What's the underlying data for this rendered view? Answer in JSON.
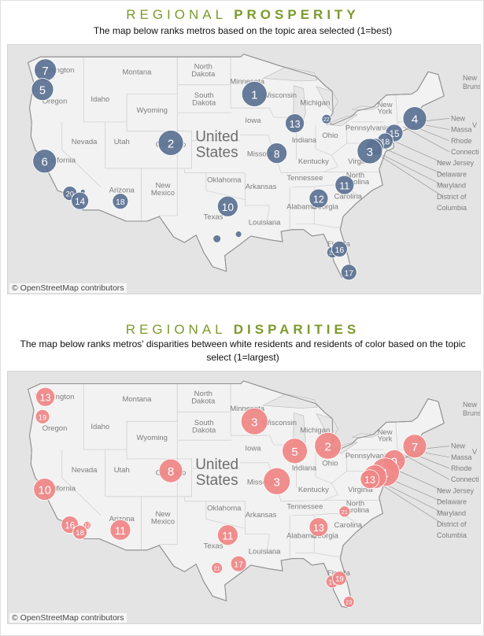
{
  "prosperity": {
    "title_light": "REGIONAL",
    "title_bold": "PROSPERITY",
    "subtitle": "The map below ranks metros based on the topic area selected (1=best)",
    "attribution": "© OpenStreetMap contributors",
    "bubble_color": "#5b7193",
    "markers": [
      {
        "rank": "7",
        "lon": -122.3,
        "lat": 47.6,
        "r": 14
      },
      {
        "rank": "5",
        "lon": -122.7,
        "lat": 45.5,
        "r": 14
      },
      {
        "rank": "1",
        "lon": -93.3,
        "lat": 45.0,
        "r": 16
      },
      {
        "rank": "13",
        "lon": -87.7,
        "lat": 41.85,
        "r": 12
      },
      {
        "rank": "2",
        "lon": -104.9,
        "lat": 39.74,
        "r": 16
      },
      {
        "rank": "8",
        "lon": -90.2,
        "lat": 38.63,
        "r": 13
      },
      {
        "rank": "6",
        "lon": -122.4,
        "lat": 37.77,
        "r": 15
      },
      {
        "rank": "20",
        "lon": -118.9,
        "lat": 34.3,
        "r": 9
      },
      {
        "rank": "",
        "lon": -117.1,
        "lat": 34.5,
        "r": 3
      },
      {
        "rank": "14",
        "lon": -117.5,
        "lat": 33.5,
        "r": 11
      },
      {
        "rank": "18",
        "lon": -111.9,
        "lat": 33.45,
        "r": 10
      },
      {
        "rank": "10",
        "lon": -97.0,
        "lat": 32.9,
        "r": 13
      },
      {
        "rank": "",
        "lon": -95.5,
        "lat": 29.9,
        "r": 4
      },
      {
        "rank": "",
        "lon": -98.5,
        "lat": 29.4,
        "r": 5
      },
      {
        "rank": "12",
        "lon": -84.39,
        "lat": 33.75,
        "r": 12
      },
      {
        "rank": "11",
        "lon": -80.8,
        "lat": 35.2,
        "r": 12
      },
      {
        "rank": "22",
        "lon": -83.3,
        "lat": 42.3,
        "r": 6
      },
      {
        "rank": "4",
        "lon": -71.06,
        "lat": 42.36,
        "r": 15
      },
      {
        "rank": "15",
        "lon": -73.9,
        "lat": 40.8,
        "r": 11
      },
      {
        "rank": "18",
        "lon": -75.16,
        "lat": 39.95,
        "r": 10
      },
      {
        "rank": "9",
        "lon": -76.6,
        "lat": 39.3,
        "r": 11
      },
      {
        "rank": "3",
        "lon": -77.3,
        "lat": 38.85,
        "r": 16
      },
      {
        "rank": "21",
        "lon": -82.5,
        "lat": 27.95,
        "r": 7
      },
      {
        "rank": "16",
        "lon": -81.5,
        "lat": 28.3,
        "r": 10
      },
      {
        "rank": "17",
        "lon": -80.2,
        "lat": 25.8,
        "r": 10
      }
    ]
  },
  "disparities": {
    "title_light": "REGIONAL",
    "title_bold": "DISPARITIES",
    "subtitle_line1": "The map below ranks metros' disparities between white residents and residents of color based on the topic",
    "subtitle_line2": "select (1=largest)",
    "attribution": "© OpenStreetMap contributors",
    "bubble_color": "#f08585",
    "markers": [
      {
        "rank": "13",
        "lon": -122.3,
        "lat": 47.6,
        "r": 12
      },
      {
        "rank": "19",
        "lon": -122.7,
        "lat": 45.5,
        "r": 9
      },
      {
        "rank": "3",
        "lon": -93.3,
        "lat": 45.0,
        "r": 17
      },
      {
        "rank": "2",
        "lon": -83.1,
        "lat": 42.4,
        "r": 17
      },
      {
        "rank": "5",
        "lon": -87.7,
        "lat": 41.85,
        "r": 16
      },
      {
        "rank": "8",
        "lon": -104.9,
        "lat": 39.74,
        "r": 15
      },
      {
        "rank": "3",
        "lon": -90.2,
        "lat": 38.63,
        "r": 17
      },
      {
        "rank": "10",
        "lon": -122.4,
        "lat": 37.77,
        "r": 14
      },
      {
        "rank": "12",
        "lon": -116.5,
        "lat": 33.95,
        "r": 5
      },
      {
        "rank": "16",
        "lon": -118.9,
        "lat": 34.0,
        "r": 11
      },
      {
        "rank": "18",
        "lon": -117.5,
        "lat": 33.2,
        "r": 9
      },
      {
        "rank": "11",
        "lon": -111.9,
        "lat": 33.45,
        "r": 13
      },
      {
        "rank": "11",
        "lon": -97.0,
        "lat": 32.9,
        "r": 13
      },
      {
        "rank": "21",
        "lon": -98.5,
        "lat": 29.4,
        "r": 7
      },
      {
        "rank": "17",
        "lon": -95.5,
        "lat": 29.85,
        "r": 10
      },
      {
        "rank": "13",
        "lon": -84.39,
        "lat": 33.75,
        "r": 12
      },
      {
        "rank": "21",
        "lon": -80.8,
        "lat": 35.4,
        "r": 7
      },
      {
        "rank": "7",
        "lon": -71.06,
        "lat": 42.36,
        "r": 15
      },
      {
        "rank": "9",
        "lon": -73.9,
        "lat": 40.8,
        "r": 14
      },
      {
        "rank": "1",
        "lon": -75.16,
        "lat": 39.6,
        "r": 18
      },
      {
        "rank": "6",
        "lon": -76.6,
        "lat": 39.1,
        "r": 15
      },
      {
        "rank": "13",
        "lon": -77.3,
        "lat": 38.85,
        "r": 12
      },
      {
        "rank": "15",
        "lon": -82.5,
        "lat": 27.95,
        "r": 8
      },
      {
        "rank": "19",
        "lon": -81.5,
        "lat": 28.3,
        "r": 9
      },
      {
        "rank": "23",
        "lon": -80.2,
        "lat": 25.8,
        "r": 7
      }
    ]
  },
  "map_labels": {
    "country_line1": "United",
    "country_line2": "States",
    "states": [
      {
        "name": "Washington",
        "lon": -121.0,
        "lat": 47.35
      },
      {
        "name": "Oregon",
        "lon": -121.0,
        "lat": 44.0
      },
      {
        "name": "Idaho",
        "lon": -114.7,
        "lat": 44.2
      },
      {
        "name": "Montana",
        "lon": -109.6,
        "lat": 47.1
      },
      {
        "name": "Wyoming",
        "lon": -107.5,
        "lat": 43.0
      },
      {
        "name": "Nevada",
        "lon": -116.9,
        "lat": 39.6
      },
      {
        "name": "Utah",
        "lon": -111.7,
        "lat": 39.6
      },
      {
        "name": "California",
        "lon": -120.3,
        "lat": 37.6
      },
      {
        "name": "Arizona",
        "lon": -111.7,
        "lat": 34.4
      },
      {
        "name": "Colorado",
        "lon": -104.9,
        "lat": 39.3
      },
      {
        "name": "New",
        "lon": -106.0,
        "lat": 34.9
      },
      {
        "name": "Mexico",
        "lon": -106.0,
        "lat": 34.1
      },
      {
        "name": "North",
        "lon": -100.4,
        "lat": 47.7
      },
      {
        "name": "Dakota",
        "lon": -100.4,
        "lat": 46.9
      },
      {
        "name": "South",
        "lon": -100.3,
        "lat": 44.6
      },
      {
        "name": "Dakota",
        "lon": -100.3,
        "lat": 43.8
      },
      {
        "name": "Minnesota",
        "lon": -94.3,
        "lat": 46.1
      },
      {
        "name": "Wisconsin",
        "lon": -89.8,
        "lat": 44.6
      },
      {
        "name": "Iowa",
        "lon": -93.5,
        "lat": 41.9
      },
      {
        "name": "Missouri",
        "lon": -92.4,
        "lat": 38.3
      },
      {
        "name": "Oklahoma",
        "lon": -97.5,
        "lat": 35.5
      },
      {
        "name": "Arkansas",
        "lon": -92.4,
        "lat": 34.8
      },
      {
        "name": "Texas",
        "lon": -99.0,
        "lat": 31.5
      },
      {
        "name": "Louisiana",
        "lon": -91.9,
        "lat": 30.9
      },
      {
        "name": "Michigan",
        "lon": -84.9,
        "lat": 43.8
      },
      {
        "name": "Indiana",
        "lon": -86.4,
        "lat": 39.8
      },
      {
        "name": "Ohio",
        "lon": -82.8,
        "lat": 40.3
      },
      {
        "name": "Kentucky",
        "lon": -85.1,
        "lat": 37.5
      },
      {
        "name": "Tennessee",
        "lon": -86.3,
        "lat": 35.7
      },
      {
        "name": "Alabama",
        "lon": -86.8,
        "lat": 32.6
      },
      {
        "name": "Georgia",
        "lon": -83.5,
        "lat": 32.6
      },
      {
        "name": "Florida",
        "lon": -81.6,
        "lat": 28.6
      },
      {
        "name": "Carolina",
        "lon": -80.3,
        "lat": 33.7
      },
      {
        "name": "North",
        "lon": -79.3,
        "lat": 36.0
      },
      {
        "name": "Carolina",
        "lon": -79.3,
        "lat": 35.3
      },
      {
        "name": "Virginia",
        "lon": -78.6,
        "lat": 37.5
      },
      {
        "name": "Pennsylvania",
        "lon": -77.6,
        "lat": 41.1
      },
      {
        "name": "New",
        "lon": -75.2,
        "lat": 43.6
      },
      {
        "name": "York",
        "lon": -75.2,
        "lat": 42.9
      }
    ],
    "callouts": [
      {
        "name": "New",
        "line": 0
      },
      {
        "name": "Massa",
        "line": 1
      },
      {
        "name": "Rhode",
        "line": 2
      },
      {
        "name": "Connecti",
        "line": 3
      },
      {
        "name": "New Jersey",
        "line": 4
      },
      {
        "name": "Delaware",
        "line": 5
      },
      {
        "name": "Maryland",
        "line": 6
      },
      {
        "name": "District of",
        "line": 7
      },
      {
        "name": "Columbia",
        "line": 8
      }
    ],
    "corner_top": "New",
    "corner_bottom": "Brunsw",
    "corner_v": "V"
  }
}
